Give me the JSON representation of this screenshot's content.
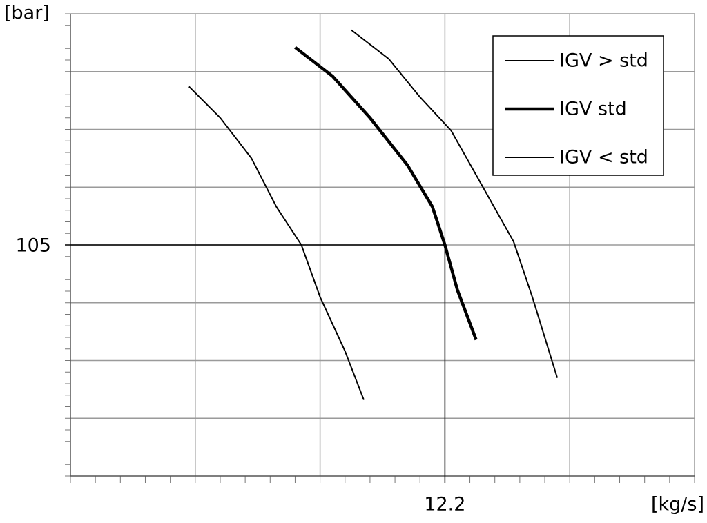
{
  "chart_data": {
    "type": "line",
    "ylabel": "[bar]",
    "xlabel": "[kg/s]",
    "xlim": [
      11.6,
      12.6
    ],
    "ylim": [
      85,
      125
    ],
    "xticks": [
      12.2
    ],
    "yticks": [
      105
    ],
    "grid": true,
    "legend": "upper right",
    "series": [
      {
        "name": "IGV > std",
        "color": "#000000",
        "linewidth": 2,
        "x": [
          12.05,
          12.11,
          12.16,
          12.21,
          12.26,
          12.31,
          12.34,
          12.38
        ],
        "values": [
          123.6,
          121.1,
          117.8,
          114.9,
          110.1,
          105.3,
          100.5,
          93.5
        ]
      },
      {
        "name": "IGV std",
        "color": "#000000",
        "linewidth": 4.5,
        "x": [
          11.96,
          12.02,
          12.08,
          12.14,
          12.18,
          12.2,
          12.22,
          12.25
        ],
        "values": [
          122.1,
          119.6,
          116.0,
          111.9,
          108.3,
          105.0,
          101.1,
          96.8
        ]
      },
      {
        "name": "IGV < std",
        "color": "#000000",
        "linewidth": 2,
        "x": [
          11.79,
          11.84,
          11.89,
          11.93,
          11.97,
          12.0,
          12.04,
          12.07
        ],
        "values": [
          118.7,
          116.0,
          112.5,
          108.3,
          105.0,
          100.5,
          95.8,
          91.6
        ]
      }
    ]
  }
}
